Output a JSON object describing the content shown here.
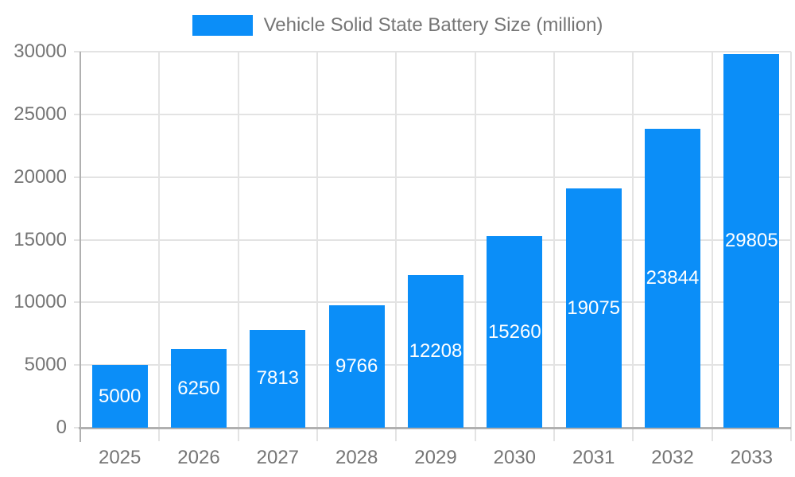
{
  "legend": {
    "label": "Vehicle Solid State Battery Size (million)"
  },
  "chart_data": {
    "type": "bar",
    "title": "Vehicle Solid State Battery Size (million)",
    "categories": [
      "2025",
      "2026",
      "2027",
      "2028",
      "2029",
      "2030",
      "2031",
      "2032",
      "2033"
    ],
    "values": [
      5000,
      6250,
      7813,
      9766,
      12208,
      15260,
      19075,
      23844,
      29805
    ],
    "xlabel": "",
    "ylabel": "",
    "ylim": [
      0,
      30000
    ],
    "yticks": [
      0,
      5000,
      10000,
      15000,
      20000,
      25000,
      30000
    ],
    "grid": true,
    "legend_position": "top-center",
    "colors": {
      "bar": "#0b8ef8",
      "value_label": "#ffffff",
      "axis_text": "#757575",
      "gridline": "#e3e3e3",
      "axis_line": "#b0b0b0"
    }
  }
}
